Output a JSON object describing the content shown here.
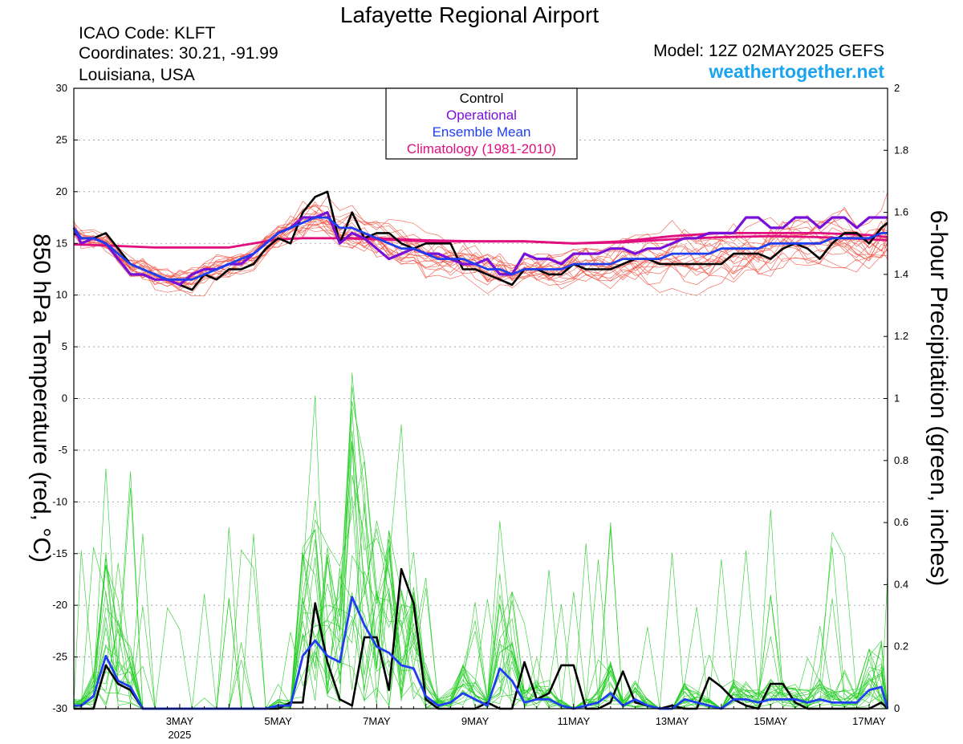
{
  "header": {
    "title": "Lafayette Regional Airport",
    "icao": "ICAO Code: KLFT",
    "coordinates": "Coordinates: 30.21, -91.99",
    "location": "Louisiana, USA",
    "model": "Model: 12Z 02MAY2025 GEFS",
    "website": "weathertogether.net"
  },
  "colors": {
    "control": "#000000",
    "operational": "#7a10d8",
    "ensemble_mean": "#1f3ef0",
    "climatology": "#e0107e",
    "members_temp": "#f04a3a",
    "members_precip": "#22cc22",
    "website": "#1aa3ef"
  },
  "chart_data": {
    "type": "line",
    "title": "Lafayette Regional Airport",
    "ylabel": "850 hPa Temperature (red, °C)",
    "y2label": "6-hour Precipitation (green, inches)",
    "ylim": [
      -30,
      30
    ],
    "y2lim": [
      0,
      2
    ],
    "yticks": [
      "30",
      "25",
      "20",
      "15",
      "10",
      "5",
      "0",
      "-5",
      "-10",
      "-15",
      "-20",
      "-25",
      "-30"
    ],
    "y2ticks": [
      "2",
      "1.8",
      "1.6",
      "1.4",
      "1.2",
      "1",
      "0.8",
      "0.6",
      "0.4",
      "0.2",
      "0"
    ],
    "xlim": [
      0.85,
      17.375
    ],
    "xticks": [
      {
        "day": 3,
        "label": "3MAY",
        "sublabel": "2025"
      },
      {
        "day": 5,
        "label": "5MAY"
      },
      {
        "day": 7,
        "label": "7MAY"
      },
      {
        "day": 9,
        "label": "9MAY"
      },
      {
        "day": 11,
        "label": "11MAY"
      },
      {
        "day": 13,
        "label": "13MAY"
      },
      {
        "day": 15,
        "label": "15MAY"
      },
      {
        "day": 17,
        "label": "17MAY"
      }
    ],
    "grid": true,
    "legend": {
      "position": "top-center",
      "entries": [
        "Control",
        "Operational",
        "Ensemble Mean",
        "Climatology (1981-2010)"
      ]
    },
    "series": [
      {
        "name": "Climatology (1981-2010)",
        "axis": "left",
        "x": [
          0.85,
          1.5,
          2.0,
          2.5,
          3.0,
          3.5,
          4.0,
          4.5,
          5.0,
          5.5,
          6.0,
          7.0,
          8.0,
          9.0,
          10.0,
          11.0,
          12.0,
          13.0,
          14.0,
          15.0,
          16.0,
          17.0,
          17.375
        ],
        "values": [
          14.9,
          14.8,
          14.7,
          14.6,
          14.6,
          14.6,
          14.6,
          15.0,
          15.4,
          15.5,
          15.5,
          15.5,
          15.3,
          15.2,
          15.2,
          15.0,
          15.2,
          15.7,
          16.0,
          16.0,
          16.0,
          15.8,
          15.6
        ]
      },
      {
        "name": "Climatology (1981-2010)",
        "axis": "left",
        "x": [
          6.2,
          7.0,
          8.0,
          9.0,
          10.0,
          11.0,
          12.0,
          13.0,
          14.0,
          15.0,
          16.0,
          17.0,
          17.375
        ],
        "values": [
          15.5,
          15.4,
          15.2,
          15.2,
          15.2,
          15.0,
          15.1,
          15.4,
          15.6,
          15.7,
          15.6,
          15.4,
          15.3
        ]
      },
      {
        "name": "Control",
        "axis": "left",
        "x": [
          0.85,
          1.0,
          1.25,
          1.5,
          1.75,
          2.0,
          2.25,
          2.5,
          2.75,
          3.0,
          3.25,
          3.5,
          3.75,
          4.0,
          4.25,
          4.5,
          4.75,
          5.0,
          5.25,
          5.5,
          5.75,
          6.0,
          6.25,
          6.5,
          6.75,
          7.0,
          7.25,
          7.5,
          7.75,
          8.0,
          8.25,
          8.5,
          8.75,
          9.0,
          9.25,
          9.5,
          9.75,
          10.0,
          10.25,
          10.5,
          10.75,
          11.0,
          11.25,
          11.5,
          11.75,
          12.0,
          12.25,
          12.5,
          12.75,
          13.0,
          13.25,
          13.5,
          13.75,
          14.0,
          14.25,
          14.5,
          14.75,
          15.0,
          15.25,
          15.5,
          15.75,
          16.0,
          16.25,
          16.5,
          16.75,
          17.0,
          17.25,
          17.375
        ],
        "values": [
          16.0,
          15.5,
          15.5,
          16.0,
          14.5,
          13.0,
          12.5,
          12.0,
          11.5,
          11.0,
          10.5,
          12.0,
          11.5,
          12.5,
          12.5,
          13.0,
          14.5,
          15.5,
          15.0,
          18.0,
          19.5,
          20.0,
          15.0,
          18.0,
          15.5,
          16.0,
          16.0,
          15.0,
          14.5,
          15.0,
          15.0,
          15.0,
          12.5,
          12.5,
          12.0,
          11.5,
          11.0,
          12.5,
          12.5,
          12.0,
          12.0,
          13.0,
          12.5,
          12.5,
          12.5,
          13.0,
          13.5,
          13.5,
          13.0,
          13.0,
          13.0,
          13.0,
          13.0,
          13.0,
          14.0,
          14.0,
          14.0,
          13.5,
          14.5,
          15.0,
          14.5,
          13.5,
          15.0,
          16.0,
          16.0,
          15.0,
          16.5,
          17.0
        ]
      },
      {
        "name": "Operational",
        "axis": "left",
        "x": [
          0.85,
          1.0,
          1.25,
          1.5,
          1.75,
          2.0,
          2.25,
          2.5,
          2.75,
          3.0,
          3.25,
          3.5,
          3.75,
          4.0,
          4.25,
          4.5,
          4.75,
          5.0,
          5.25,
          5.5,
          5.75,
          6.0,
          6.25,
          6.5,
          6.75,
          7.0,
          7.25,
          7.5,
          7.75,
          8.0,
          8.25,
          8.5,
          8.75,
          9.0,
          9.25,
          9.5,
          9.75,
          10.0,
          10.25,
          10.5,
          10.75,
          11.0,
          11.25,
          11.5,
          11.75,
          12.0,
          12.25,
          12.5,
          12.75,
          13.0,
          13.25,
          13.5,
          13.75,
          14.0,
          14.25,
          14.5,
          14.75,
          15.0,
          15.25,
          15.5,
          15.75,
          16.0,
          16.25,
          16.5,
          16.75,
          17.0,
          17.25,
          17.375
        ],
        "values": [
          16.5,
          15.0,
          15.5,
          15.0,
          13.5,
          12.0,
          12.0,
          11.5,
          11.5,
          11.0,
          12.0,
          12.5,
          12.5,
          13.0,
          13.0,
          14.0,
          15.0,
          16.0,
          16.5,
          17.5,
          17.5,
          18.0,
          15.0,
          16.0,
          15.5,
          14.5,
          13.5,
          14.0,
          14.5,
          14.0,
          14.0,
          13.5,
          13.0,
          13.0,
          13.5,
          12.0,
          12.0,
          14.0,
          13.5,
          13.5,
          13.0,
          14.0,
          14.0,
          14.0,
          14.5,
          14.5,
          14.0,
          14.5,
          14.5,
          15.0,
          15.5,
          15.5,
          16.0,
          16.0,
          16.0,
          17.5,
          17.5,
          16.5,
          16.5,
          17.5,
          17.5,
          16.5,
          17.5,
          17.5,
          16.5,
          17.5,
          17.5,
          17.5
        ]
      },
      {
        "name": "Ensemble Mean",
        "axis": "left",
        "x": [
          0.85,
          1.0,
          1.25,
          1.5,
          1.75,
          2.0,
          2.25,
          2.5,
          2.75,
          3.0,
          3.25,
          3.5,
          3.75,
          4.0,
          4.25,
          4.5,
          4.75,
          5.0,
          5.25,
          5.5,
          5.75,
          6.0,
          6.25,
          6.5,
          6.75,
          7.0,
          7.25,
          7.5,
          7.75,
          8.0,
          8.25,
          8.5,
          8.75,
          9.0,
          9.25,
          9.5,
          9.75,
          10.0,
          10.25,
          10.5,
          10.75,
          11.0,
          11.25,
          11.5,
          11.75,
          12.0,
          12.25,
          12.5,
          12.75,
          13.0,
          13.25,
          13.5,
          13.75,
          14.0,
          14.25,
          14.5,
          14.75,
          15.0,
          15.25,
          15.5,
          15.75,
          16.0,
          16.25,
          16.5,
          16.75,
          17.0,
          17.25,
          17.375
        ],
        "values": [
          16.5,
          15.5,
          15.5,
          15.0,
          14.0,
          13.0,
          12.5,
          12.0,
          11.5,
          11.5,
          11.5,
          12.0,
          12.5,
          13.0,
          13.5,
          14.0,
          15.0,
          16.0,
          16.5,
          17.0,
          17.5,
          17.5,
          16.5,
          16.5,
          16.0,
          15.5,
          15.0,
          14.5,
          14.5,
          14.0,
          13.5,
          13.5,
          13.5,
          13.0,
          12.5,
          12.5,
          12.0,
          12.5,
          12.5,
          12.5,
          12.5,
          13.0,
          13.0,
          13.0,
          13.0,
          13.5,
          13.5,
          13.5,
          13.5,
          14.0,
          14.0,
          14.0,
          14.0,
          14.5,
          14.5,
          14.5,
          14.5,
          15.0,
          15.0,
          15.0,
          15.0,
          15.0,
          15.5,
          15.5,
          15.5,
          15.5,
          16.0,
          16.0
        ]
      },
      {
        "name": "Control",
        "axis": "right",
        "x": [
          0.85,
          1.25,
          1.5,
          1.75,
          2.0,
          2.25,
          2.5,
          2.75,
          3.0,
          3.25,
          3.5,
          3.75,
          4.0,
          4.25,
          4.5,
          4.75,
          5.0,
          5.25,
          5.5,
          5.75,
          6.0,
          6.25,
          6.5,
          6.75,
          7.0,
          7.25,
          7.5,
          7.75,
          8.0,
          8.25,
          8.5,
          8.75,
          9.0,
          9.25,
          9.5,
          9.75,
          10.0,
          10.25,
          10.5,
          10.75,
          11.0,
          11.25,
          11.5,
          11.75,
          12.0,
          12.25,
          12.5,
          12.75,
          13.0,
          13.25,
          13.5,
          13.75,
          14.0,
          14.25,
          14.5,
          14.75,
          15.0,
          15.25,
          15.5,
          15.75,
          16.0,
          16.25,
          16.5,
          16.75,
          17.0,
          17.25,
          17.375
        ],
        "values": [
          0.0,
          0.0,
          0.14,
          0.08,
          0.06,
          0.0,
          0.0,
          0.0,
          0.0,
          0.0,
          0.0,
          0.0,
          0.0,
          0.0,
          0.0,
          0.0,
          0.0,
          0.02,
          0.02,
          0.34,
          0.15,
          0.03,
          0.01,
          0.23,
          0.23,
          0.06,
          0.45,
          0.34,
          0.03,
          0.0,
          0.0,
          0.0,
          0.0,
          0.02,
          0.0,
          0.0,
          0.15,
          0.03,
          0.05,
          0.14,
          0.14,
          0.0,
          0.0,
          0.02,
          0.12,
          0.02,
          0.01,
          0.0,
          0.01,
          0.0,
          0.0,
          0.1,
          0.07,
          0.03,
          0.01,
          0.0,
          0.08,
          0.08,
          0.02,
          0.0,
          0.0,
          0.0,
          0.0,
          0.0,
          0.0,
          0.02,
          0.0
        ]
      },
      {
        "name": "Ensemble Mean",
        "axis": "right",
        "x": [
          0.85,
          1.0,
          1.25,
          1.5,
          1.75,
          2.0,
          2.25,
          2.5,
          2.75,
          3.0,
          3.25,
          3.5,
          3.75,
          4.0,
          4.25,
          4.5,
          4.75,
          5.0,
          5.25,
          5.5,
          5.75,
          6.0,
          6.25,
          6.5,
          6.75,
          7.0,
          7.25,
          7.5,
          7.75,
          8.0,
          8.25,
          8.5,
          8.75,
          9.0,
          9.25,
          9.5,
          9.75,
          10.0,
          10.25,
          10.5,
          10.75,
          11.0,
          11.25,
          11.5,
          11.75,
          12.0,
          12.25,
          12.5,
          12.75,
          13.0,
          13.25,
          13.5,
          13.75,
          14.0,
          14.25,
          14.5,
          14.75,
          15.0,
          15.25,
          15.5,
          15.75,
          16.0,
          16.25,
          16.5,
          16.75,
          17.0,
          17.25,
          17.375
        ],
        "values": [
          0.01,
          0.01,
          0.04,
          0.17,
          0.09,
          0.07,
          0.0,
          0.0,
          0.0,
          0.0,
          0.0,
          0.0,
          0.0,
          0.0,
          0.0,
          0.0,
          0.0,
          0.01,
          0.01,
          0.17,
          0.22,
          0.17,
          0.15,
          0.36,
          0.27,
          0.2,
          0.18,
          0.14,
          0.13,
          0.04,
          0.01,
          0.02,
          0.05,
          0.03,
          0.01,
          0.13,
          0.09,
          0.02,
          0.03,
          0.03,
          0.01,
          0.0,
          0.01,
          0.02,
          0.05,
          0.01,
          0.03,
          0.01,
          0.0,
          0.0,
          0.03,
          0.02,
          0.01,
          0.0,
          0.03,
          0.03,
          0.02,
          0.03,
          0.03,
          0.03,
          0.02,
          0.03,
          0.02,
          0.02,
          0.02,
          0.06,
          0.07,
          0.0
        ]
      }
    ]
  }
}
